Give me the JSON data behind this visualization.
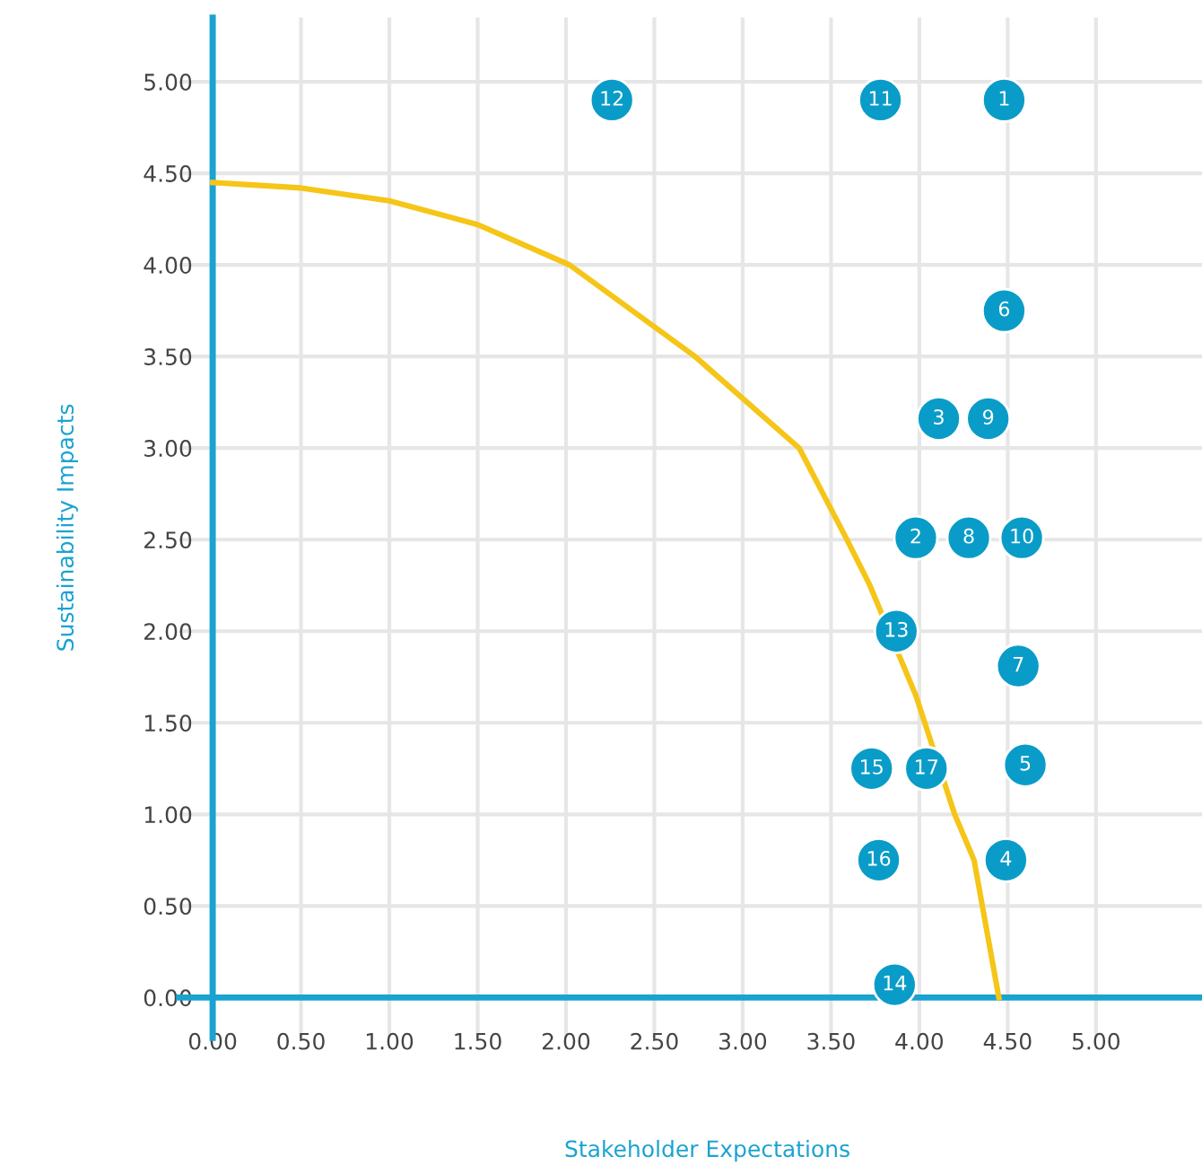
{
  "chart_data": {
    "type": "scatter",
    "xlabel": "Stakeholder Expectations",
    "ylabel": "Sustainability Impacts",
    "xlim": [
      -0.19,
      5.6
    ],
    "ylim": [
      -0.22,
      5.35
    ],
    "xticks": [
      {
        "value": 0,
        "label": "0.00"
      },
      {
        "value": 0.5,
        "label": "0.50"
      },
      {
        "value": 1,
        "label": "1.00"
      },
      {
        "value": 1.5,
        "label": "1.50"
      },
      {
        "value": 2,
        "label": "2.00"
      },
      {
        "value": 2.5,
        "label": "2.50"
      },
      {
        "value": 3,
        "label": "3.00"
      },
      {
        "value": 3.5,
        "label": "3.50"
      },
      {
        "value": 4,
        "label": "4.00"
      },
      {
        "value": 4.5,
        "label": "4.50"
      },
      {
        "value": 5,
        "label": "5.00"
      }
    ],
    "yticks": [
      {
        "value": 0,
        "label": "0.00"
      },
      {
        "value": 0.5,
        "label": "0.50"
      },
      {
        "value": 1,
        "label": "1.00"
      },
      {
        "value": 1.5,
        "label": "1.50"
      },
      {
        "value": 2,
        "label": "2.00"
      },
      {
        "value": 2.5,
        "label": "2.50"
      },
      {
        "value": 3,
        "label": "3.00"
      },
      {
        "value": 3.5,
        "label": "3.50"
      },
      {
        "value": 4,
        "label": "4.00"
      },
      {
        "value": 4.5,
        "label": "4.50"
      },
      {
        "value": 5,
        "label": "5.00"
      }
    ],
    "grid": true,
    "marker": "circle",
    "series": [
      {
        "type": "line",
        "color": "#f5c518",
        "x": [
          0,
          0.5,
          1.0,
          1.5,
          2.02,
          2.73,
          3.32,
          3.59,
          3.72,
          3.98,
          4.2,
          4.31,
          4.45
        ],
        "values": [
          4.45,
          4.42,
          4.35,
          4.22,
          4.0,
          3.5,
          3.0,
          2.5,
          2.25,
          1.65,
          1.0,
          0.75,
          0
        ],
        "marker": "none",
        "line_style": "solid"
      },
      {
        "color": "#0a9cc8",
        "x": [
          4.48,
          3.98,
          4.11,
          4.49,
          4.6,
          4.48,
          4.56,
          4.28,
          4.39,
          4.58,
          3.78,
          2.26,
          3.87,
          3.86,
          3.73,
          3.77,
          4.04
        ],
        "values": [
          4.9,
          2.51,
          3.16,
          0.75,
          1.27,
          3.75,
          1.81,
          2.51,
          3.16,
          2.51,
          4.9,
          4.9,
          2.0,
          0.07,
          1.25,
          0.75,
          1.25
        ]
      }
    ],
    "annotations": [
      {
        "text": "1",
        "x": 4.48,
        "y": 4.9
      },
      {
        "text": "2",
        "x": 3.98,
        "y": 2.51
      },
      {
        "text": "3",
        "x": 4.11,
        "y": 3.16
      },
      {
        "text": "4",
        "x": 4.49,
        "y": 0.75
      },
      {
        "text": "5",
        "x": 4.6,
        "y": 1.27
      },
      {
        "text": "6",
        "x": 4.48,
        "y": 3.75
      },
      {
        "text": "7",
        "x": 4.56,
        "y": 1.81
      },
      {
        "text": "8",
        "x": 4.28,
        "y": 2.51
      },
      {
        "text": "9",
        "x": 4.39,
        "y": 3.16
      },
      {
        "text": "10",
        "x": 4.58,
        "y": 2.51
      },
      {
        "text": "11",
        "x": 3.78,
        "y": 4.9
      },
      {
        "text": "12",
        "x": 2.26,
        "y": 4.9
      },
      {
        "text": "13",
        "x": 3.87,
        "y": 2.0
      },
      {
        "text": "14",
        "x": 3.86,
        "y": 0.07
      },
      {
        "text": "15",
        "x": 3.73,
        "y": 1.25
      },
      {
        "text": "16",
        "x": 3.77,
        "y": 0.75
      },
      {
        "text": "17",
        "x": 4.04,
        "y": 1.25
      }
    ]
  }
}
